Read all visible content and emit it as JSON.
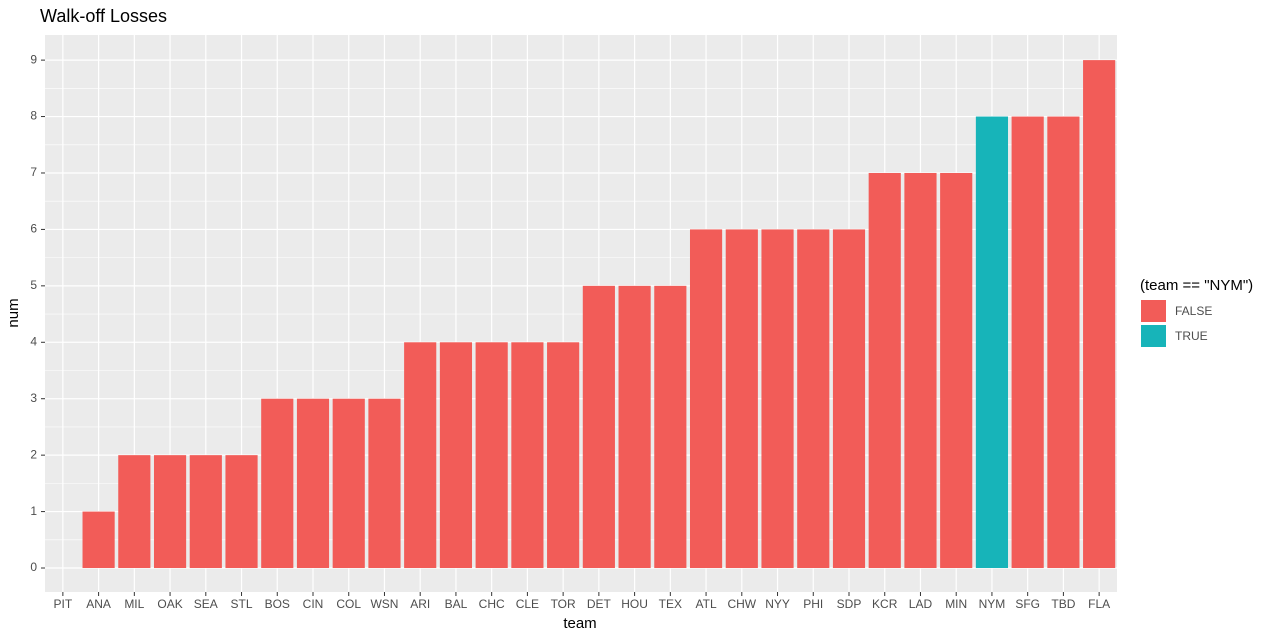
{
  "chart_data": {
    "type": "bar",
    "title": "Walk-off Losses",
    "x_label": "team",
    "y_label": "num",
    "categories": [
      "PIT",
      "ANA",
      "MIL",
      "OAK",
      "SEA",
      "STL",
      "BOS",
      "CIN",
      "COL",
      "WSN",
      "ARI",
      "BAL",
      "CHC",
      "CLE",
      "TOR",
      "DET",
      "HOU",
      "TEX",
      "ATL",
      "CHW",
      "NYY",
      "PHI",
      "SDP",
      "KCR",
      "LAD",
      "MIN",
      "NYM",
      "SFG",
      "TBD",
      "FLA"
    ],
    "legend_title": "(team == \"NYM\")",
    "legend_position": "right",
    "series": [
      {
        "name": "FALSE",
        "color": "#f25c58",
        "values": [
          0,
          1,
          2,
          2,
          2,
          2,
          3,
          3,
          3,
          3,
          4,
          4,
          4,
          4,
          4,
          5,
          5,
          5,
          6,
          6,
          6,
          6,
          6,
          7,
          7,
          7,
          null,
          8,
          8,
          9
        ]
      },
      {
        "name": "TRUE",
        "color": "#17b4b9",
        "values": [
          null,
          null,
          null,
          null,
          null,
          null,
          null,
          null,
          null,
          null,
          null,
          null,
          null,
          null,
          null,
          null,
          null,
          null,
          null,
          null,
          null,
          null,
          null,
          null,
          null,
          null,
          8,
          null,
          null,
          null
        ]
      }
    ],
    "ylim": [
      -0.425,
      9.445
    ],
    "yticks": [
      0,
      1,
      2,
      3,
      4,
      5,
      6,
      7,
      8,
      9
    ],
    "grid": true
  }
}
